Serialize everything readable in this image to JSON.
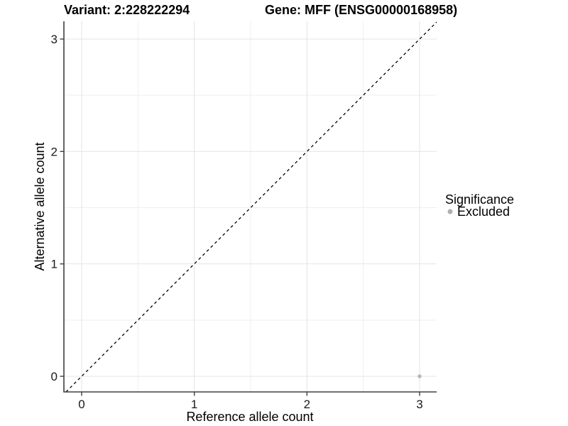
{
  "chart_data": {
    "type": "scatter",
    "titles": {
      "left": "Variant: 2:228222294",
      "right": "Gene: MFF (ENSG00000168958)"
    },
    "xlabel": "Reference allele count",
    "ylabel": "Alternative allele count",
    "x_ticks": [
      "0",
      "1",
      "2",
      "3"
    ],
    "y_ticks": [
      "0",
      "1",
      "2",
      "3"
    ],
    "xlim": [
      -0.16,
      3.15
    ],
    "ylim": [
      -0.14,
      3.16
    ],
    "grid": "major and minor gridlines, light gray on white",
    "reference_line": {
      "slope": 1,
      "intercept": 0,
      "style": "dashed",
      "color": "#000000"
    },
    "series": [
      {
        "name": "Excluded",
        "color": "#b8b8b8",
        "points": [
          [
            3,
            0
          ]
        ]
      }
    ],
    "legend": {
      "title": "Significance",
      "position": "right",
      "items": [
        {
          "label": "Excluded",
          "color": "#b0b0b0"
        }
      ]
    }
  },
  "colors": {
    "background": "#ffffff",
    "axis_line": "#404040",
    "grid_major": "#e4e4e4",
    "grid_minor": "#efefef",
    "point": "#b8b8b8",
    "text": "#000000"
  }
}
